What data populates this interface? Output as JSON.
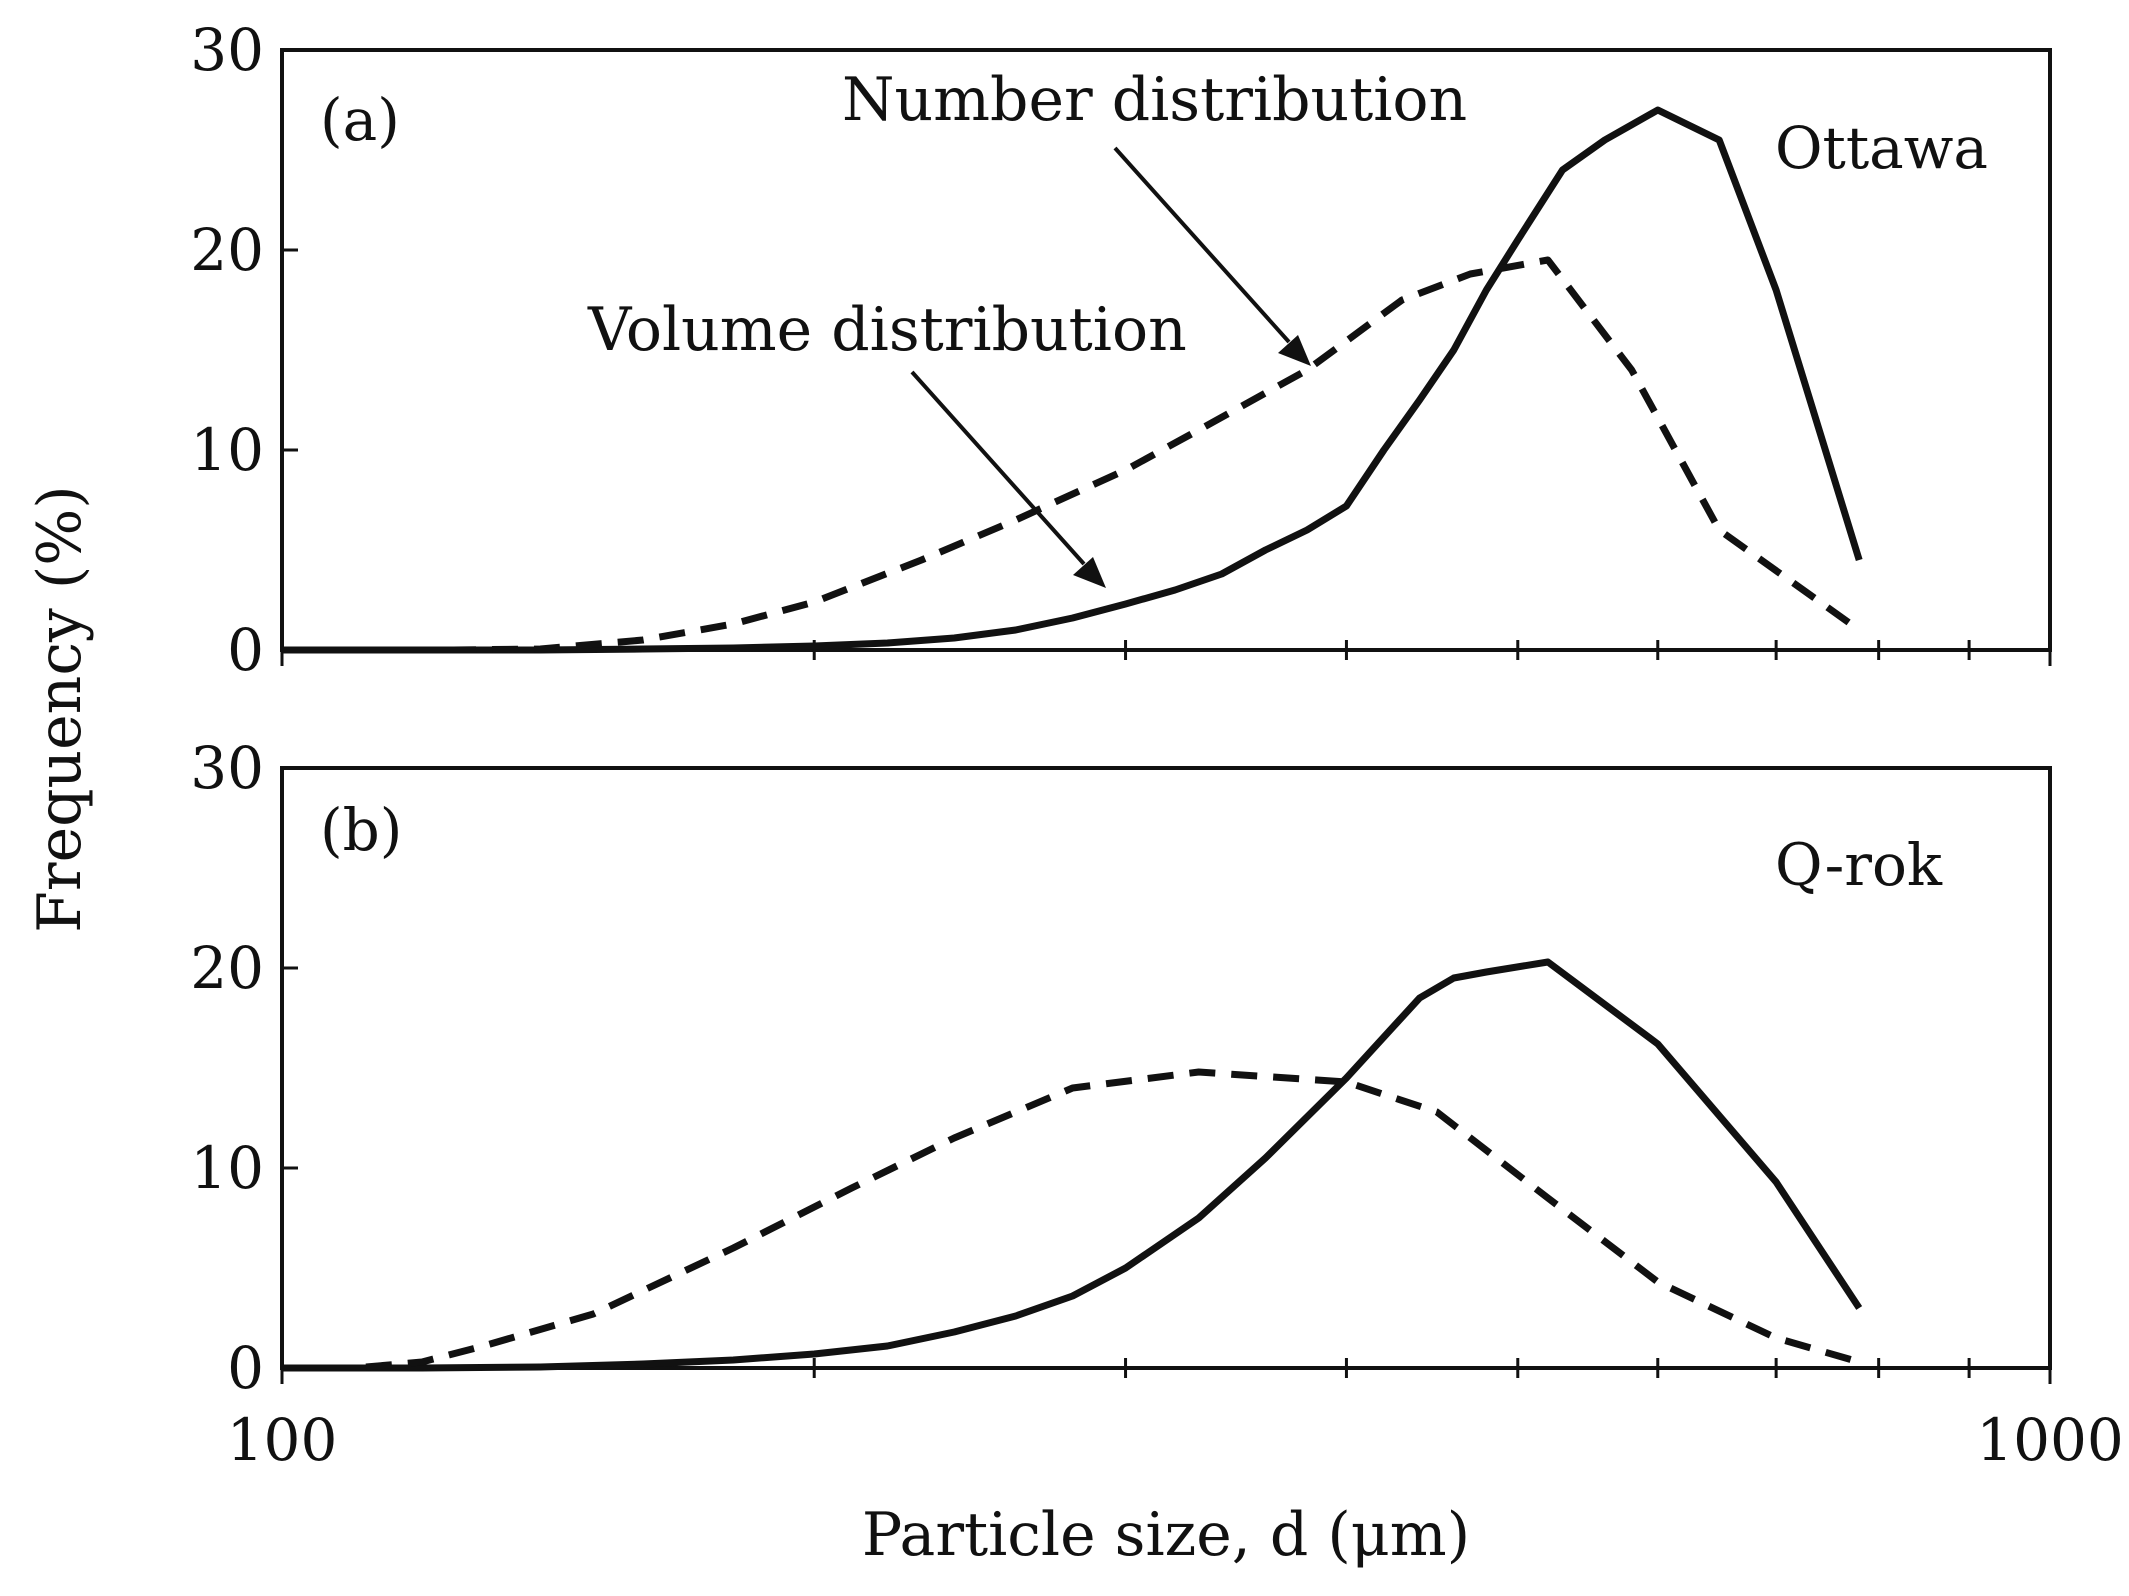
{
  "chart_data": {
    "type": "line",
    "title": "",
    "xlabel": "Particle size, d (μm)",
    "ylabel": "Frequency (%)",
    "xscale": "log",
    "xlim": [
      100,
      1000
    ],
    "x_tick_labels": [
      "100",
      "1000"
    ],
    "colors": {
      "line": "#111111"
    },
    "panels": [
      {
        "id": "a",
        "label": "(a)",
        "name": "Ottawa",
        "ylim": [
          0,
          30
        ],
        "yticks": [
          "0",
          "10",
          "20",
          "30"
        ],
        "annotations": [
          "Number distribution",
          "Volume distribution"
        ],
        "series": [
          {
            "name": "Volume distribution",
            "style": "solid",
            "x": [
              100,
              120,
              140,
              160,
              180,
              200,
              220,
              240,
              260,
              280,
              300,
              320,
              340,
              360,
              380,
              400,
              420,
              440,
              460,
              480,
              500,
              530,
              560,
              600,
              650,
              700,
              780
            ],
            "y": [
              0,
              0,
              0,
              0.05,
              0.1,
              0.2,
              0.35,
              0.6,
              1.0,
              1.6,
              2.3,
              3.0,
              3.8,
              5.0,
              6.0,
              7.2,
              10.0,
              12.5,
              15.0,
              18.0,
              20.5,
              24.0,
              25.5,
              27.0,
              25.5,
              18.0,
              4.5
            ]
          },
          {
            "name": "Number distribution",
            "style": "dashed",
            "x": [
              100,
              125,
              140,
              160,
              180,
              200,
              230,
              260,
              300,
              330,
              380,
              430,
              470,
              520,
              580,
              650,
              780
            ],
            "y": [
              0,
              0,
              0.05,
              0.5,
              1.3,
              2.4,
              4.5,
              6.5,
              9.0,
              11.0,
              14.0,
              17.5,
              18.8,
              19.5,
              14.0,
              6.0,
              1.0
            ]
          }
        ]
      },
      {
        "id": "b",
        "label": "(b)",
        "name": "Q-rok",
        "ylim": [
          0,
          30
        ],
        "yticks": [
          "0",
          "10",
          "20",
          "30"
        ],
        "series": [
          {
            "name": "Volume distribution",
            "style": "solid",
            "x": [
              100,
              110,
              120,
              140,
              160,
              180,
              200,
              220,
              240,
              260,
              280,
              300,
              330,
              360,
              400,
              440,
              460,
              480,
              520,
              600,
              700,
              780
            ],
            "y": [
              0,
              0,
              0,
              0.05,
              0.2,
              0.4,
              0.7,
              1.1,
              1.8,
              2.6,
              3.6,
              5.0,
              7.5,
              10.5,
              14.5,
              18.5,
              19.5,
              19.8,
              20.3,
              16.2,
              9.3,
              3.0
            ]
          },
          {
            "name": "Number distribution",
            "style": "dashed",
            "x": [
              100,
              110,
              120,
              130,
              150,
              180,
              210,
              240,
              280,
              330,
              400,
              450,
              520,
              600,
              700,
              780
            ],
            "y": [
              0,
              0,
              0.3,
              1.1,
              2.7,
              6.0,
              9.0,
              11.5,
              14.0,
              14.8,
              14.3,
              12.8,
              8.5,
              4.3,
              1.5,
              0.3
            ]
          }
        ]
      }
    ]
  }
}
